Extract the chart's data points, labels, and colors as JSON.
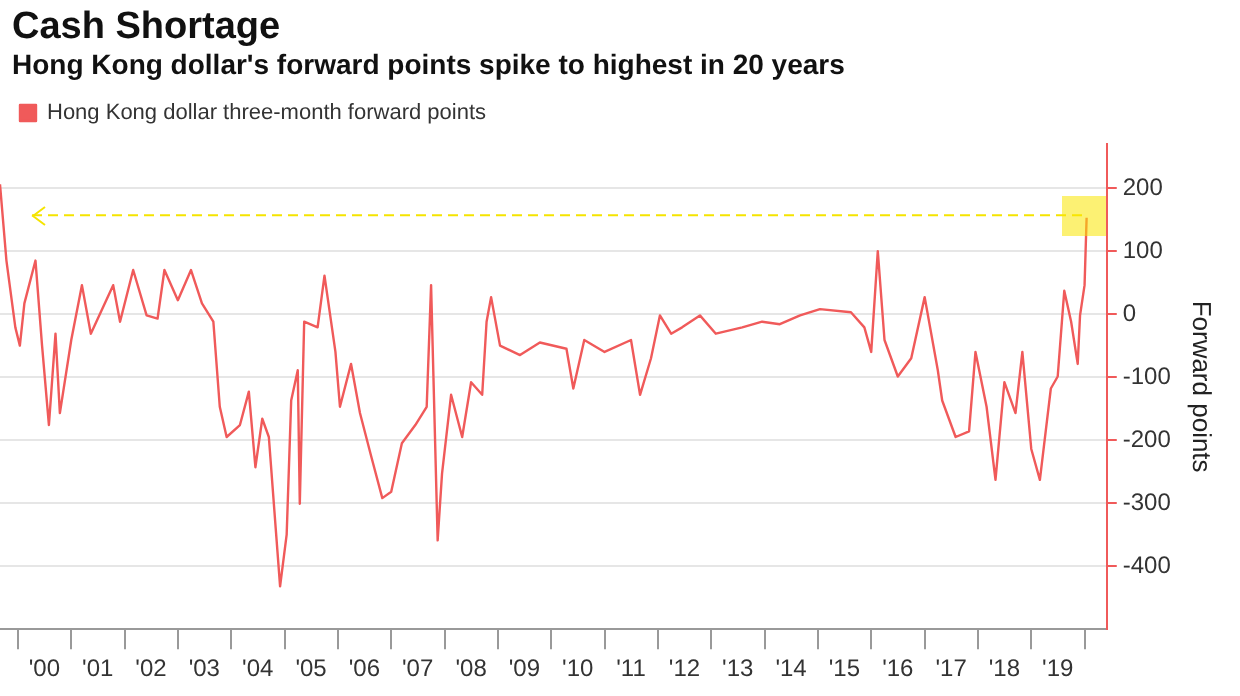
{
  "chart_data": {
    "type": "line",
    "title": "Cash Shortage",
    "subtitle": "Hong Kong dollar's forward points spike to highest in 20 years",
    "ylabel": "Forward points",
    "xlim": [
      "1999-09-01",
      "2020-06-01"
    ],
    "xticks": [
      {
        "value": "2000-01-01",
        "label": null
      },
      {
        "value": "2000-07-01",
        "label": "'00"
      },
      {
        "value": "2001-01-01",
        "label": null
      },
      {
        "value": "2001-07-01",
        "label": "'01"
      },
      {
        "value": "2002-01-01",
        "label": null
      },
      {
        "value": "2002-07-01",
        "label": "'02"
      },
      {
        "value": "2003-01-01",
        "label": null
      },
      {
        "value": "2003-07-01",
        "label": "'03"
      },
      {
        "value": "2004-01-01",
        "label": null
      },
      {
        "value": "2004-07-01",
        "label": "'04"
      },
      {
        "value": "2005-01-01",
        "label": null
      },
      {
        "value": "2005-07-01",
        "label": "'05"
      },
      {
        "value": "2006-01-01",
        "label": null
      },
      {
        "value": "2006-07-01",
        "label": "'06"
      },
      {
        "value": "2007-01-01",
        "label": null
      },
      {
        "value": "2007-07-01",
        "label": "'07"
      },
      {
        "value": "2008-01-01",
        "label": null
      },
      {
        "value": "2008-07-01",
        "label": "'08"
      },
      {
        "value": "2009-01-01",
        "label": null
      },
      {
        "value": "2009-07-01",
        "label": "'09"
      },
      {
        "value": "2010-01-01",
        "label": null
      },
      {
        "value": "2010-07-01",
        "label": "'10"
      },
      {
        "value": "2011-01-01",
        "label": null
      },
      {
        "value": "2011-07-01",
        "label": "'11"
      },
      {
        "value": "2012-01-01",
        "label": null
      },
      {
        "value": "2012-07-01",
        "label": "'12"
      },
      {
        "value": "2013-01-01",
        "label": null
      },
      {
        "value": "2013-07-01",
        "label": "'13"
      },
      {
        "value": "2014-01-01",
        "label": null
      },
      {
        "value": "2014-07-01",
        "label": "'14"
      },
      {
        "value": "2015-01-01",
        "label": null
      },
      {
        "value": "2015-07-01",
        "label": "'15"
      },
      {
        "value": "2016-01-01",
        "label": null
      },
      {
        "value": "2016-07-01",
        "label": "'16"
      },
      {
        "value": "2017-01-01",
        "label": null
      },
      {
        "value": "2017-07-01",
        "label": "'17"
      },
      {
        "value": "2018-01-01",
        "label": null
      },
      {
        "value": "2018-07-01",
        "label": "'18"
      },
      {
        "value": "2019-01-01",
        "label": null
      },
      {
        "value": "2019-07-01",
        "label": "'19"
      },
      {
        "value": "2020-01-01",
        "label": null
      }
    ],
    "ylim": [
      -500,
      270
    ],
    "yticks": [
      -400,
      -300,
      -200,
      -100,
      0,
      100,
      200
    ],
    "grid": "y",
    "legend": "top left",
    "marker": "none",
    "line_style": "solid",
    "ref_lines": [
      {
        "axis": "y",
        "value": 157,
        "color": "#f5e400",
        "line_style": "dashed"
      }
    ],
    "series": [
      {
        "name": "Hong Kong dollar three-month forward points",
        "color": "#f05a5a",
        "x": [
          "1999-09-01",
          "1999-10-15",
          "1999-12-15",
          "2000-01-15",
          "2000-02-15",
          "2000-05-01",
          "2000-06-15",
          "2000-08-01",
          "2000-09-15",
          "2000-10-15",
          "2001-01-01",
          "2001-03-15",
          "2001-05-15",
          "2001-08-01",
          "2001-10-15",
          "2001-12-01",
          "2002-03-01",
          "2002-06-01",
          "2002-08-15",
          "2002-10-01",
          "2003-01-01",
          "2003-04-01",
          "2003-06-15",
          "2003-09-01",
          "2003-10-15",
          "2003-12-01",
          "2004-03-01",
          "2004-05-01",
          "2004-06-15",
          "2004-08-01",
          "2004-09-15",
          "2004-11-01",
          "2004-12-01",
          "2005-01-15",
          "2005-02-15",
          "2005-04-01",
          "2005-04-15",
          "2005-05-15",
          "2005-08-15",
          "2005-10-01",
          "2005-12-15",
          "2006-01-15",
          "2006-04-01",
          "2006-06-01",
          "2006-08-15",
          "2006-11-01",
          "2007-01-01",
          "2007-03-15",
          "2007-06-15",
          "2007-09-01",
          "2007-10-01",
          "2007-11-15",
          "2007-12-15",
          "2008-02-15",
          "2008-05-01",
          "2008-07-01",
          "2008-09-15",
          "2008-10-15",
          "2008-11-15",
          "2009-01-15",
          "2009-06-01",
          "2009-10-15",
          "2010-04-15",
          "2010-06-01",
          "2010-08-15",
          "2011-01-01",
          "2011-07-01",
          "2011-09-01",
          "2011-11-15",
          "2012-01-15",
          "2012-04-01",
          "2012-06-15",
          "2012-10-15",
          "2013-02-01",
          "2013-08-01",
          "2013-12-15",
          "2014-04-15",
          "2014-09-01",
          "2015-01-15",
          "2015-08-15",
          "2015-11-15",
          "2016-01-01",
          "2016-02-15",
          "2016-04-01",
          "2016-07-01",
          "2016-10-01",
          "2017-01-01",
          "2017-04-01",
          "2017-05-01",
          "2017-08-01",
          "2017-11-01",
          "2017-12-15",
          "2018-03-01",
          "2018-05-01",
          "2018-07-01",
          "2018-09-15",
          "2018-11-01",
          "2019-01-01",
          "2019-03-01",
          "2019-05-15",
          "2019-07-01",
          "2019-08-15",
          "2019-10-01",
          "2019-11-15",
          "2019-12-01",
          "2020-01-01",
          "2020-01-15"
        ],
        "values": [
          206,
          85,
          -21,
          -50,
          17,
          85,
          -50,
          -176,
          -31,
          -157,
          -41,
          46,
          -31,
          8,
          46,
          -12,
          70,
          -2,
          -7,
          70,
          22,
          70,
          17,
          -12,
          -147,
          -195,
          -176,
          -123,
          -243,
          -166,
          -195,
          -340,
          -432,
          -350,
          -137,
          -89,
          -301,
          -12,
          -21,
          61,
          -60,
          -147,
          -79,
          -157,
          -224,
          -292,
          -282,
          -205,
          -176,
          -147,
          46,
          -359,
          -253,
          -128,
          -195,
          -108,
          -128,
          -12,
          27,
          -50,
          -65,
          -45,
          -55,
          -118,
          -41,
          -60,
          -41,
          -128,
          -70,
          -2,
          -31,
          -21,
          -2,
          -31,
          -21,
          -12,
          -16,
          -2,
          8,
          3,
          -21,
          -60,
          100,
          -41,
          -99,
          -70,
          27,
          -89,
          -137,
          -195,
          -186,
          -60,
          -147,
          -263,
          -108,
          -157,
          -60,
          -214,
          -263,
          -118,
          -99,
          37,
          -12,
          -79,
          -2,
          46,
          153
        ]
      }
    ]
  }
}
